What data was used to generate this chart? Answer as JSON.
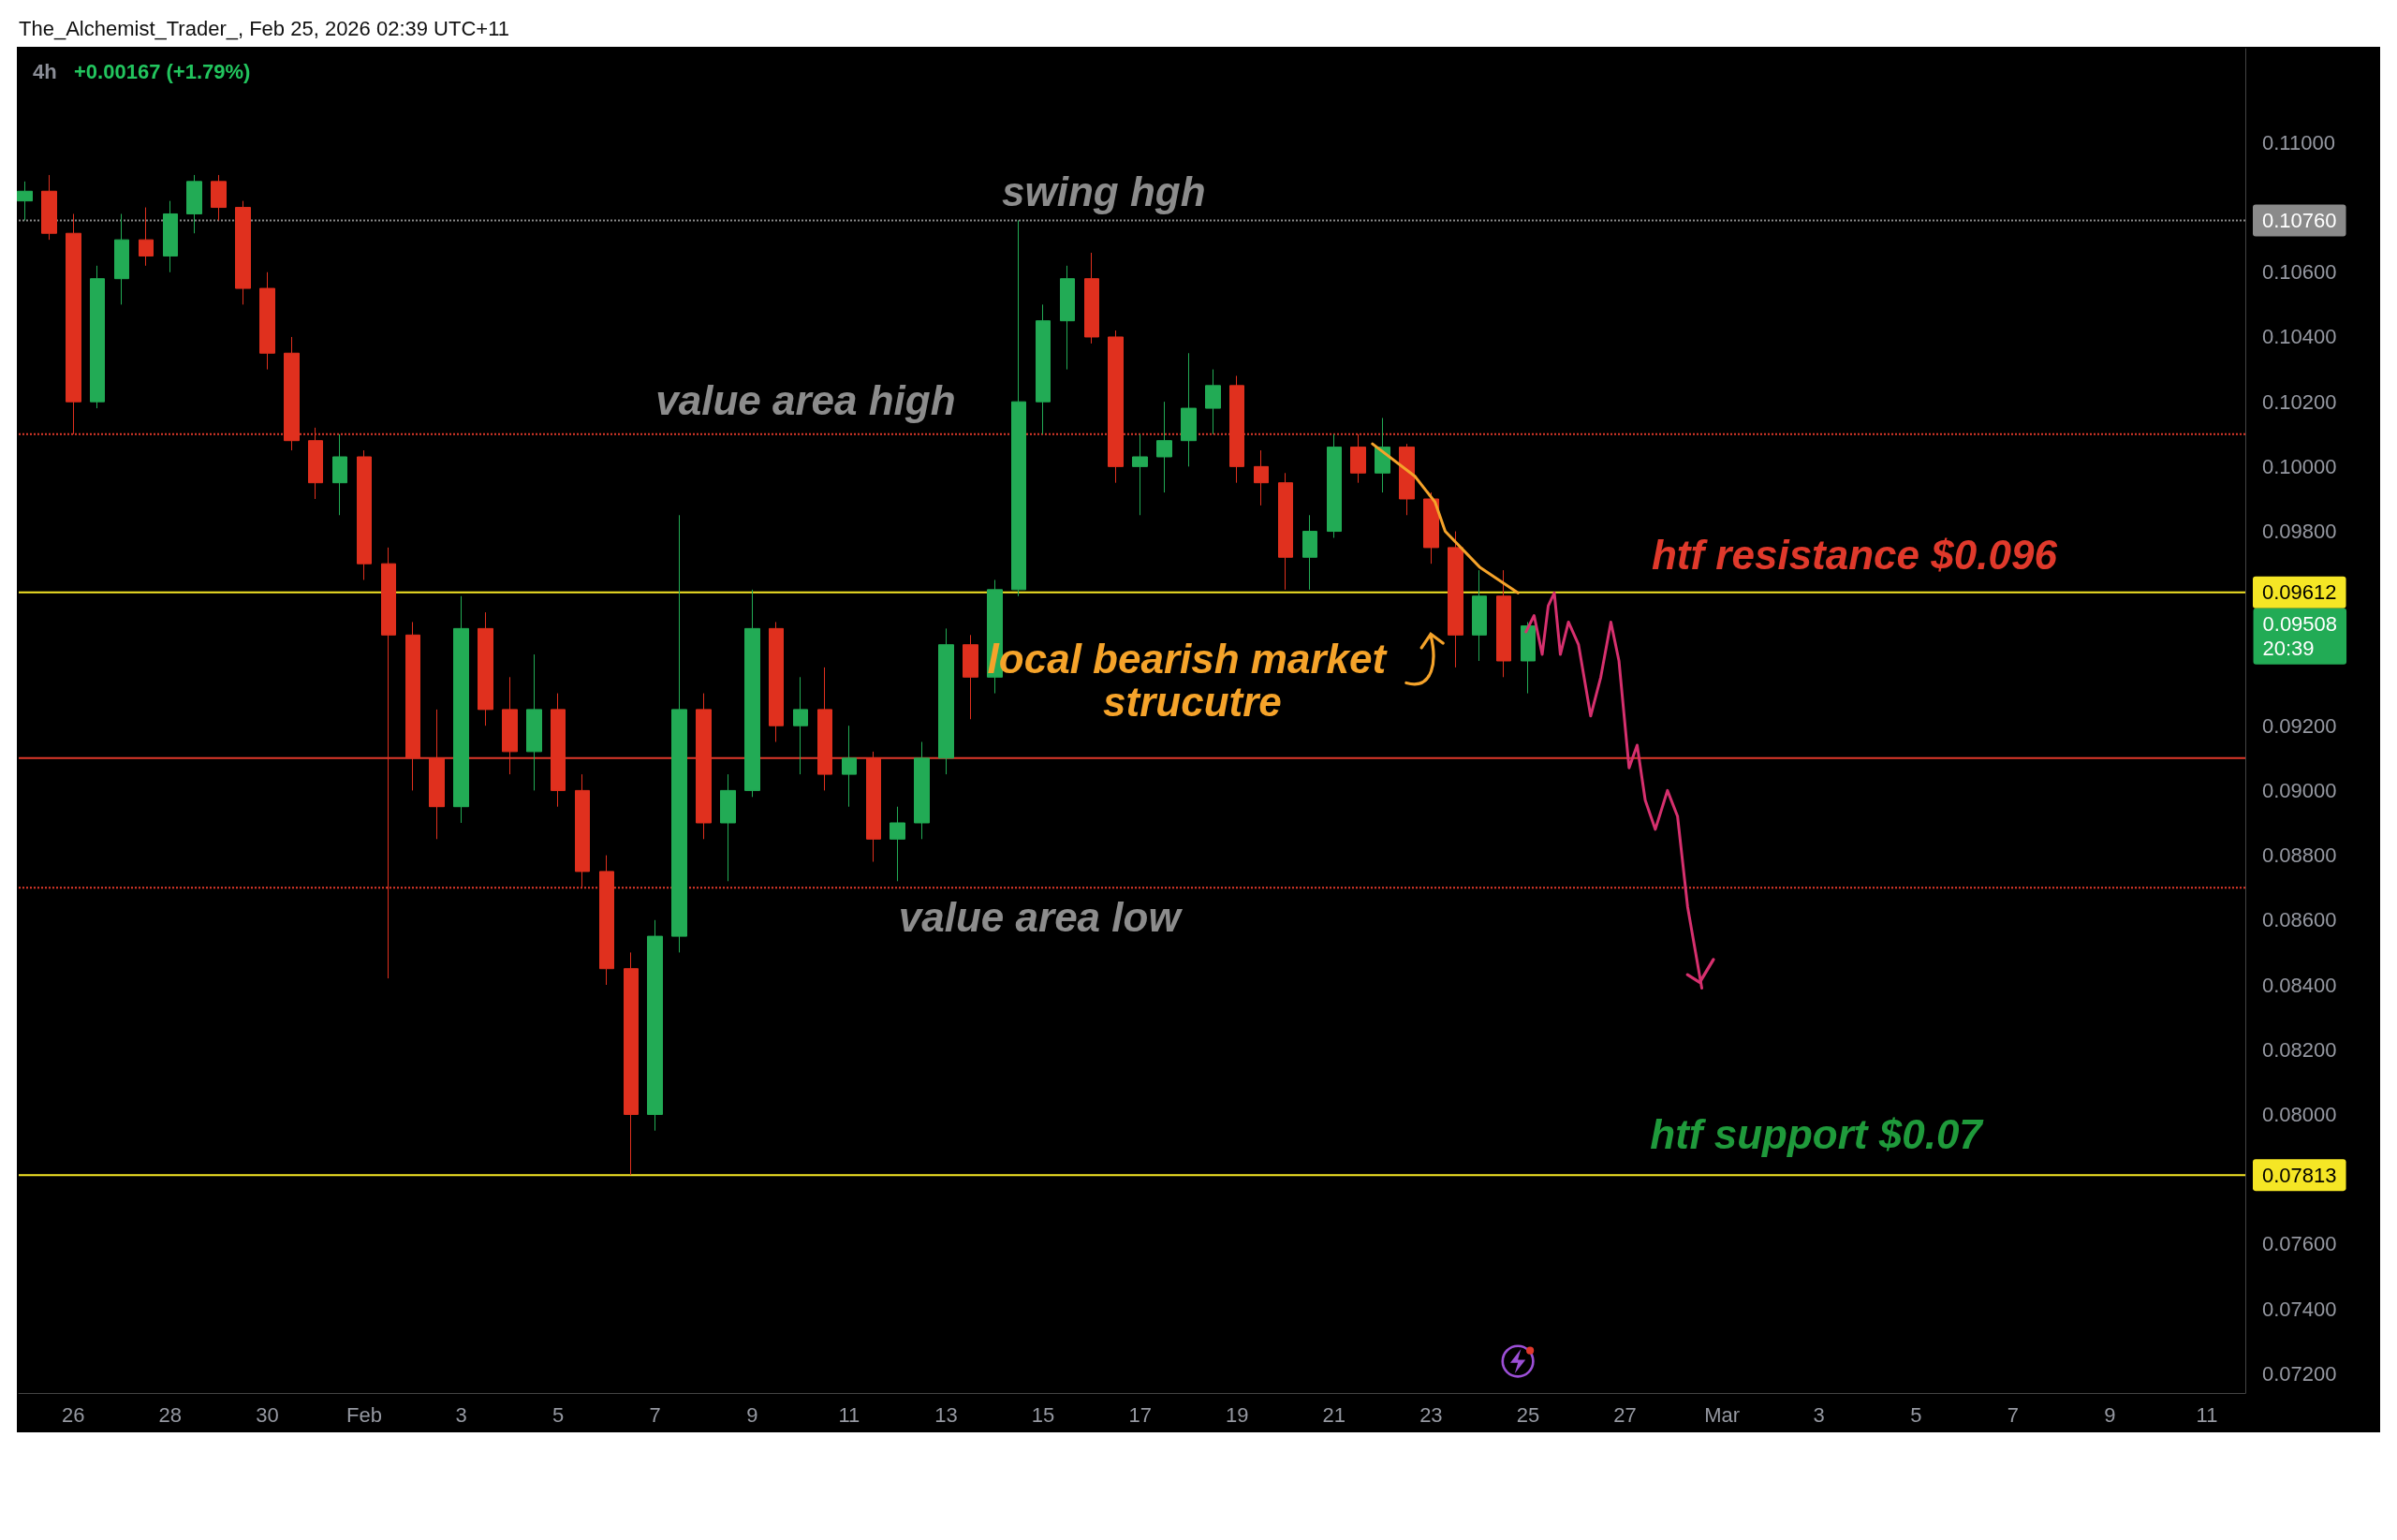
{
  "chart_data": {
    "type": "candlestick",
    "title": "4h",
    "subtitle": "+0.00167 (+1.79%)",
    "annotations": [
      "The_Alchemist_Trader_, Feb 25, 2026 02:39 UTC+11",
      "swing hgh",
      "value area high",
      "local bearish market strucutre",
      "value area low",
      "htf resistance $0.096",
      "htf support $0.07",
      "0.09508\n20:39"
    ],
    "x": [
      "2026-01-25T00:00",
      "2026-01-25T12:00",
      "2026-01-26T00:00",
      "2026-01-26T12:00",
      "2026-01-27T00:00",
      "2026-01-27T12:00",
      "2026-01-28T00:00",
      "2026-01-28T12:00",
      "2026-01-29T00:00",
      "2026-01-29T12:00",
      "2026-01-30T00:00",
      "2026-01-30T12:00",
      "2026-01-31T00:00",
      "2026-01-31T12:00",
      "2026-02-01T00:00",
      "2026-02-01T12:00",
      "2026-02-02T00:00",
      "2026-02-02T12:00",
      "2026-02-03T00:00",
      "2026-02-03T12:00",
      "2026-02-04T00:00",
      "2026-02-04T12:00",
      "2026-02-05T00:00",
      "2026-02-05T12:00",
      "2026-02-06T00:00",
      "2026-02-06T12:00",
      "2026-02-07T00:00",
      "2026-02-07T12:00",
      "2026-02-08T00:00",
      "2026-02-08T12:00",
      "2026-02-09T00:00",
      "2026-02-09T12:00",
      "2026-02-10T00:00",
      "2026-02-10T12:00",
      "2026-02-11T00:00",
      "2026-02-11T12:00",
      "2026-02-12T00:00",
      "2026-02-12T12:00",
      "2026-02-13T00:00",
      "2026-02-13T12:00",
      "2026-02-14T00:00",
      "2026-02-14T12:00",
      "2026-02-15T00:00",
      "2026-02-15T12:00",
      "2026-02-16T00:00",
      "2026-02-16T12:00",
      "2026-02-17T00:00",
      "2026-02-17T12:00",
      "2026-02-18T00:00",
      "2026-02-18T12:00",
      "2026-02-19T00:00",
      "2026-02-19T12:00",
      "2026-02-20T00:00",
      "2026-02-20T12:00",
      "2026-02-21T00:00",
      "2026-02-21T12:00",
      "2026-02-22T00:00",
      "2026-02-22T12:00",
      "2026-02-23T00:00",
      "2026-02-23T12:00",
      "2026-02-24T00:00",
      "2026-02-24T12:00",
      "2026-02-25T00:00"
    ],
    "ohlc": [
      [
        0.1082,
        0.1088,
        0.1076,
        0.1085
      ],
      [
        0.1085,
        0.109,
        0.107,
        0.1072
      ],
      [
        0.1072,
        0.1078,
        0.101,
        0.102
      ],
      [
        0.102,
        0.1062,
        0.1018,
        0.1058
      ],
      [
        0.1058,
        0.1078,
        0.105,
        0.107
      ],
      [
        0.107,
        0.108,
        0.1062,
        0.1065
      ],
      [
        0.1065,
        0.1082,
        0.106,
        0.1078
      ],
      [
        0.1078,
        0.109,
        0.1072,
        0.1088
      ],
      [
        0.1088,
        0.109,
        0.1076,
        0.108
      ],
      [
        0.108,
        0.1082,
        0.105,
        0.1055
      ],
      [
        0.1055,
        0.106,
        0.103,
        0.1035
      ],
      [
        0.1035,
        0.104,
        0.1005,
        0.1008
      ],
      [
        0.1008,
        0.1012,
        0.099,
        0.0995
      ],
      [
        0.0995,
        0.101,
        0.0985,
        0.1003
      ],
      [
        0.1003,
        0.1005,
        0.0965,
        0.097
      ],
      [
        0.097,
        0.0975,
        0.0842,
        0.0948
      ],
      [
        0.0948,
        0.0952,
        0.09,
        0.091
      ],
      [
        0.091,
        0.0925,
        0.0885,
        0.0895
      ],
      [
        0.0895,
        0.096,
        0.089,
        0.095
      ],
      [
        0.095,
        0.0955,
        0.092,
        0.0925
      ],
      [
        0.0925,
        0.0935,
        0.0905,
        0.0912
      ],
      [
        0.0912,
        0.0942,
        0.09,
        0.0925
      ],
      [
        0.0925,
        0.093,
        0.0895,
        0.09
      ],
      [
        0.09,
        0.0905,
        0.087,
        0.0875
      ],
      [
        0.0875,
        0.088,
        0.084,
        0.0845
      ],
      [
        0.0845,
        0.085,
        0.07813,
        0.08
      ],
      [
        0.08,
        0.086,
        0.0795,
        0.0855
      ],
      [
        0.0855,
        0.0985,
        0.085,
        0.0925
      ],
      [
        0.0925,
        0.093,
        0.0885,
        0.089
      ],
      [
        0.089,
        0.0905,
        0.0872,
        0.09
      ],
      [
        0.09,
        0.0962,
        0.0898,
        0.095
      ],
      [
        0.095,
        0.0952,
        0.0915,
        0.092
      ],
      [
        0.092,
        0.0935,
        0.0905,
        0.0925
      ],
      [
        0.0925,
        0.0938,
        0.09,
        0.0905
      ],
      [
        0.0905,
        0.092,
        0.0895,
        0.091
      ],
      [
        0.091,
        0.0912,
        0.0878,
        0.0885
      ],
      [
        0.0885,
        0.0895,
        0.0872,
        0.089
      ],
      [
        0.089,
        0.0915,
        0.0885,
        0.091
      ],
      [
        0.091,
        0.095,
        0.0905,
        0.0945
      ],
      [
        0.0945,
        0.0948,
        0.0922,
        0.0935
      ],
      [
        0.0935,
        0.0965,
        0.093,
        0.0962
      ],
      [
        0.0962,
        0.1076,
        0.096,
        0.102
      ],
      [
        0.102,
        0.105,
        0.101,
        0.1045
      ],
      [
        0.1045,
        0.1062,
        0.103,
        0.1058
      ],
      [
        0.1058,
        0.1066,
        0.1038,
        0.104
      ],
      [
        0.104,
        0.1042,
        0.0995,
        0.1
      ],
      [
        0.1,
        0.101,
        0.0985,
        0.1003
      ],
      [
        0.1003,
        0.102,
        0.0992,
        0.1008
      ],
      [
        0.1008,
        0.1035,
        0.1,
        0.1018
      ],
      [
        0.1018,
        0.103,
        0.101,
        0.1025
      ],
      [
        0.1025,
        0.1028,
        0.0995,
        0.1
      ],
      [
        0.1,
        0.1005,
        0.0988,
        0.0995
      ],
      [
        0.0995,
        0.0998,
        0.0962,
        0.0972
      ],
      [
        0.0972,
        0.0985,
        0.0962,
        0.098
      ],
      [
        0.098,
        0.101,
        0.0978,
        0.1006
      ],
      [
        0.1006,
        0.101,
        0.0995,
        0.0998
      ],
      [
        0.0998,
        0.1015,
        0.0992,
        0.1006
      ],
      [
        0.1006,
        0.1007,
        0.0985,
        0.099
      ],
      [
        0.099,
        0.0992,
        0.097,
        0.0975
      ],
      [
        0.0975,
        0.098,
        0.0938,
        0.0948
      ],
      [
        0.0948,
        0.0968,
        0.094,
        0.096
      ],
      [
        0.096,
        0.0968,
        0.0935,
        0.094
      ],
      [
        0.094,
        0.0952,
        0.093,
        0.09508
      ]
    ],
    "series": [
      {
        "type": "line",
        "color": "#f5a32a",
        "x": [
          "2026-02-21T19:00",
          "2026-02-22T16:00",
          "2026-02-23T02:00",
          "2026-02-23T07:00",
          "2026-02-24T00:00",
          "2026-02-24T19:00"
        ],
        "values": [
          0.1007,
          0.0997,
          0.0989,
          0.098,
          0.0969,
          0.0961
        ]
      },
      {
        "type": "line",
        "color": "#d6306e",
        "x": [
          "2026-02-24T23:00",
          "2026-02-25T03:00",
          "2026-02-25T07:00",
          "2026-02-25T10:00",
          "2026-02-25T13:00",
          "2026-02-25T16:00",
          "2026-02-25T20:00",
          "2026-02-26T01:00",
          "2026-02-26T07:00",
          "2026-02-26T12:00",
          "2026-02-26T17:00",
          "2026-02-26T21:00",
          "2026-02-27T02:00",
          "2026-02-27T06:00",
          "2026-02-27T10:00",
          "2026-02-27T15:00",
          "2026-02-27T21:00",
          "2026-02-28T02:00",
          "2026-02-28T07:00",
          "2026-02-28T14:00"
        ],
        "values": [
          0.0949,
          0.0954,
          0.0942,
          0.0957,
          0.0961,
          0.0942,
          0.0952,
          0.0945,
          0.0923,
          0.0935,
          0.0952,
          0.094,
          0.0907,
          0.0914,
          0.0897,
          0.0888,
          0.09,
          0.0892,
          0.0864,
          0.0839
        ]
      }
    ],
    "marker": "none",
    "xlim": [
      "2026-01-24T21:00",
      "2026-03-11T19:00"
    ],
    "xticks": [
      {
        "value": "2026-01-26",
        "label": "26"
      },
      {
        "value": "2026-01-28",
        "label": "28"
      },
      {
        "value": "2026-01-30",
        "label": "30"
      },
      {
        "value": "2026-02-01",
        "label": "Feb"
      },
      {
        "value": "2026-02-03",
        "label": "3"
      },
      {
        "value": "2026-02-05",
        "label": "5"
      },
      {
        "value": "2026-02-07",
        "label": "7"
      },
      {
        "value": "2026-02-09",
        "label": "9"
      },
      {
        "value": "2026-02-11",
        "label": "11"
      },
      {
        "value": "2026-02-13",
        "label": "13"
      },
      {
        "value": "2026-02-15",
        "label": "15"
      },
      {
        "value": "2026-02-17",
        "label": "17"
      },
      {
        "value": "2026-02-19",
        "label": "19"
      },
      {
        "value": "2026-02-21",
        "label": "21"
      },
      {
        "value": "2026-02-23",
        "label": "23"
      },
      {
        "value": "2026-02-25",
        "label": "25"
      },
      {
        "value": "2026-02-27",
        "label": "27"
      },
      {
        "value": "2026-03-01",
        "label": "Mar"
      },
      {
        "value": "2026-03-03",
        "label": "3"
      },
      {
        "value": "2026-03-05",
        "label": "5"
      },
      {
        "value": "2026-03-07",
        "label": "7"
      },
      {
        "value": "2026-03-09",
        "label": "9"
      },
      {
        "value": "2026-03-11",
        "label": "11"
      }
    ],
    "ylim": [
      0.0714,
      0.1129
    ],
    "yticks": [
      {
        "value": 0.072,
        "label": "0.07200"
      },
      {
        "value": 0.074,
        "label": "0.07400"
      },
      {
        "value": 0.076,
        "label": "0.07600"
      },
      {
        "value": 0.08,
        "label": "0.08000"
      },
      {
        "value": 0.082,
        "label": "0.08200"
      },
      {
        "value": 0.084,
        "label": "0.08400"
      },
      {
        "value": 0.086,
        "label": "0.08600"
      },
      {
        "value": 0.088,
        "label": "0.08800"
      },
      {
        "value": 0.09,
        "label": "0.09000"
      },
      {
        "value": 0.092,
        "label": "0.09200"
      },
      {
        "value": 0.098,
        "label": "0.09800"
      },
      {
        "value": 0.1,
        "label": "0.10000"
      },
      {
        "value": 0.102,
        "label": "0.10200"
      },
      {
        "value": 0.104,
        "label": "0.10400"
      },
      {
        "value": 0.106,
        "label": "0.10600"
      },
      {
        "value": 0.11,
        "label": "0.11000"
      }
    ],
    "ref_lines": [
      {
        "axis": "y",
        "value": 0.1076,
        "label": "0.10760",
        "color": "#8a8a8a",
        "line_style": "dotted"
      },
      {
        "axis": "y",
        "value": 0.101,
        "label": null,
        "color": "#e0392b",
        "line_style": "dotted"
      },
      {
        "axis": "y",
        "value": 0.091,
        "label": null,
        "color": "#e0392b",
        "line_style": "solid"
      },
      {
        "axis": "y",
        "value": 0.087,
        "label": null,
        "color": "#e0392b",
        "line_style": "dotted"
      },
      {
        "axis": "y",
        "value": 0.09612,
        "label": "0.09612",
        "color": "#f5e625",
        "line_style": "solid"
      },
      {
        "axis": "y",
        "value": 0.07813,
        "label": "0.07813",
        "color": "#f5e625",
        "line_style": "solid"
      }
    ]
  }
}
